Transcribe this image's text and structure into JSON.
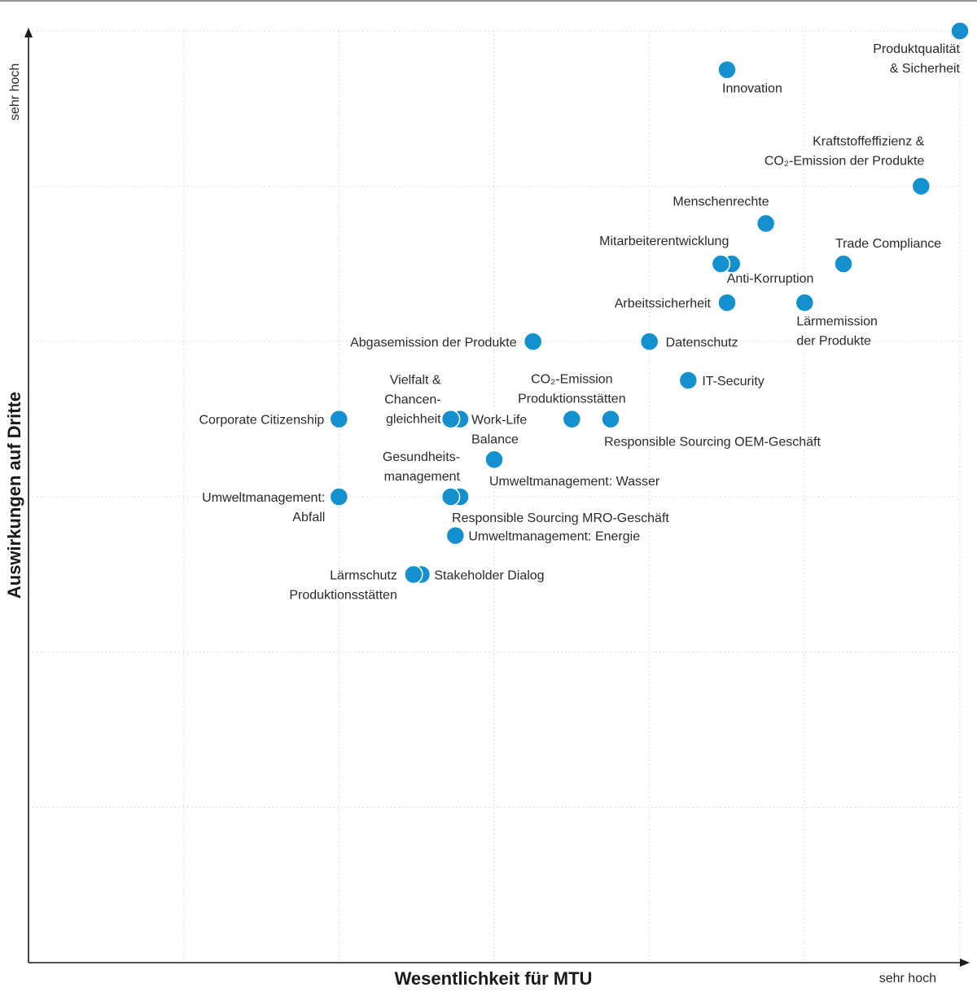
{
  "chart_data": {
    "type": "scatter",
    "title": "",
    "xlabel": "Wesentlichkeit für MTU",
    "ylabel": "Auswirkungen auf Dritte",
    "x_max_label": "sehr hoch",
    "y_max_label": "sehr hoch",
    "xlim": [
      0,
      6
    ],
    "ylim": [
      0,
      6
    ],
    "grid": true,
    "marker_color": "#1490cf",
    "points": [
      {
        "name": "Produktqualität & Sicherheit",
        "lines": [
          "Produktqualität",
          "& Sicherheit"
        ],
        "x": 6.0,
        "y": 6.0,
        "anchor": "end",
        "dx": 0,
        "dy": 27
      },
      {
        "name": "Innovation",
        "lines": [
          "Innovation"
        ],
        "x": 4.5,
        "y": 5.75,
        "anchor": "start",
        "dx": -6,
        "dy": 28
      },
      {
        "name": "Kraftstoffeffizienz & CO2-Emission der Produkte",
        "lines": [
          "Kraftstoffeffizienz &",
          "CO₂-Emission der Produkte"
        ],
        "x": 5.75,
        "y": 5.0,
        "anchor": "end",
        "dx": 4,
        "dy": -50
      },
      {
        "name": "Menschenrechte",
        "lines": [
          "Menschenrechte"
        ],
        "x": 4.75,
        "y": 4.76,
        "anchor": "end",
        "dx": 4,
        "dy": -22
      },
      {
        "name": "Trade Compliance",
        "lines": [
          "Trade Compliance"
        ],
        "x": 5.25,
        "y": 4.5,
        "anchor": "start",
        "dx": -10,
        "dy": -20
      },
      {
        "name": "Mitarbeiterentwicklung",
        "lines": [
          "Mitarbeiterentwicklung"
        ],
        "x": 4.46,
        "y": 4.5,
        "anchor": "end",
        "dx": 10,
        "dy": -23
      },
      {
        "name": "Anti-Korruption",
        "lines": [
          "Anti-Korruption"
        ],
        "x": 4.53,
        "y": 4.5,
        "anchor": "start",
        "dx": -6,
        "dy": 23
      },
      {
        "name": "Arbeitssicherheit",
        "lines": [
          "Arbeitssicherheit"
        ],
        "x": 4.5,
        "y": 4.25,
        "anchor": "end",
        "dx": -20,
        "dy": 6
      },
      {
        "name": "Lärmemission der Produkte",
        "lines": [
          "Lärmemission",
          "der Produkte"
        ],
        "x": 5.0,
        "y": 4.25,
        "anchor": "start",
        "dx": -10,
        "dy": 28
      },
      {
        "name": "Abgasemission der Produkte",
        "lines": [
          "Abgasemission der Produkte"
        ],
        "x": 3.25,
        "y": 4.0,
        "anchor": "end",
        "dx": -20,
        "dy": 6
      },
      {
        "name": "Datenschutz",
        "lines": [
          "Datenschutz"
        ],
        "x": 4.0,
        "y": 4.0,
        "anchor": "start",
        "dx": 20,
        "dy": 6
      },
      {
        "name": "IT-Security",
        "lines": [
          "IT-Security"
        ],
        "x": 4.25,
        "y": 3.75,
        "anchor": "start",
        "dx": 17,
        "dy": 6
      },
      {
        "name": "Corporate Citizenship",
        "lines": [
          "Corporate Citizenship"
        ],
        "x": 2.0,
        "y": 3.5,
        "anchor": "end",
        "dx": -18,
        "dy": 6
      },
      {
        "name": "Vielfalt & Chancengleichheit",
        "lines": [
          "Vielfalt &",
          "Chancen-",
          "gleichheit"
        ],
        "x": 2.72,
        "y": 3.5,
        "anchor": "end",
        "dx": -12,
        "dy": -43
      },
      {
        "name": "Work-Life Balance",
        "lines": [
          "Work-Life",
          "Balance"
        ],
        "x": 2.78,
        "y": 3.5,
        "anchor": "start",
        "dx": 14,
        "dy": 6
      },
      {
        "name": "CO2-Emission Produktionsstätten",
        "lines": [
          "CO₂-Emission",
          "Produktionsstätten"
        ],
        "x": 3.5,
        "y": 3.5,
        "anchor": "middle",
        "dx": 0,
        "dy": -44
      },
      {
        "name": "Responsible Sourcing OEM-Geschäft",
        "lines": [
          "Responsible Sourcing OEM-Geschäft"
        ],
        "x": 3.75,
        "y": 3.5,
        "anchor": "start",
        "dx": -8,
        "dy": 33
      },
      {
        "name": "Gesundheitsmanagement",
        "lines": [
          "Gesundheits-",
          "management"
        ],
        "x": 3.0,
        "y": 3.24,
        "anchor": "end",
        "dx": -42,
        "dy": 2
      },
      {
        "name": "Umweltmanagement: Wasser",
        "lines": [
          "Umweltmanagement: Wasser"
        ],
        "x": 3.0,
        "y": 3.24,
        "anchor": "start",
        "dx": -6,
        "dy": 32
      },
      {
        "name": "Umweltmanagement: Abfall",
        "lines": [
          "Umweltmanagement:",
          "Abfall"
        ],
        "x": 2.0,
        "y": 3.0,
        "anchor": "end",
        "dx": -17,
        "dy": 6
      },
      {
        "name": "Responsible Sourcing MRO-Geschäft",
        "lines": [
          "Responsible Sourcing MRO-Geschäft"
        ],
        "x": 2.78,
        "y": 3.0,
        "anchor": "start",
        "dx": -10,
        "dy": 31
      },
      {
        "name": "Umweltmanagement: Energie",
        "lines": [
          "Umweltmanagement: Energie"
        ],
        "x": 2.75,
        "y": 2.75,
        "anchor": "start",
        "dx": 16,
        "dy": 6
      },
      {
        "name": "Lärmschutz Produktionsstätten",
        "lines": [
          "Lärmschutz",
          "Produktionsstätten"
        ],
        "x": 2.48,
        "y": 2.5,
        "anchor": "end",
        "dx": -20,
        "dy": 6
      },
      {
        "name": "Stakeholder Dialog",
        "lines": [
          "Stakeholder Dialog"
        ],
        "x": 2.53,
        "y": 2.5,
        "anchor": "start",
        "dx": 16,
        "dy": 6
      },
      {
        "name": "Vielfalt & Chancengleichheit (2)",
        "lines": [],
        "x": 2.72,
        "y": 3.5
      },
      {
        "name": "Responsible Sourcing MRO-Geschäft (2)",
        "lines": [],
        "x": 2.72,
        "y": 3.0
      },
      {
        "name": "Mitarbeiterentwicklung (2)",
        "lines": [],
        "x": 4.46,
        "y": 4.5
      },
      {
        "name": "Lärmschutz (2)",
        "lines": [],
        "x": 2.48,
        "y": 2.5
      }
    ]
  }
}
